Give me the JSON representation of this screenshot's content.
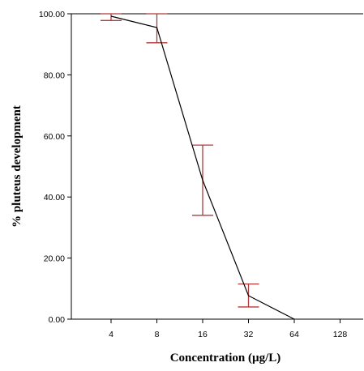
{
  "chart_data": {
    "type": "line",
    "xlabel": "Concentration (µg/L)",
    "ylabel": "% pluteus development",
    "x_scale": "log2",
    "x_ticks": [
      "4",
      "8",
      "16",
      "32",
      "64",
      "128"
    ],
    "y_ticks": [
      "0.00",
      "20.00",
      "40.00",
      "60.00",
      "80.00",
      "100.00"
    ],
    "ylim": [
      0,
      100
    ],
    "grid": false,
    "legend": "none",
    "series": [
      {
        "x": [
          4,
          8,
          16,
          32,
          64
        ],
        "y": [
          99.2,
          95.5,
          45.5,
          7.7,
          0.0
        ],
        "error_low": [
          97.8,
          90.5,
          34.0,
          4.0,
          0.0
        ],
        "error_high": [
          100.0,
          100.0,
          57.0,
          11.5,
          0.0
        ]
      }
    ],
    "colors": {
      "line": "#000000",
      "error_bars": "#b23a3a",
      "reference_line": "#000000"
    }
  }
}
